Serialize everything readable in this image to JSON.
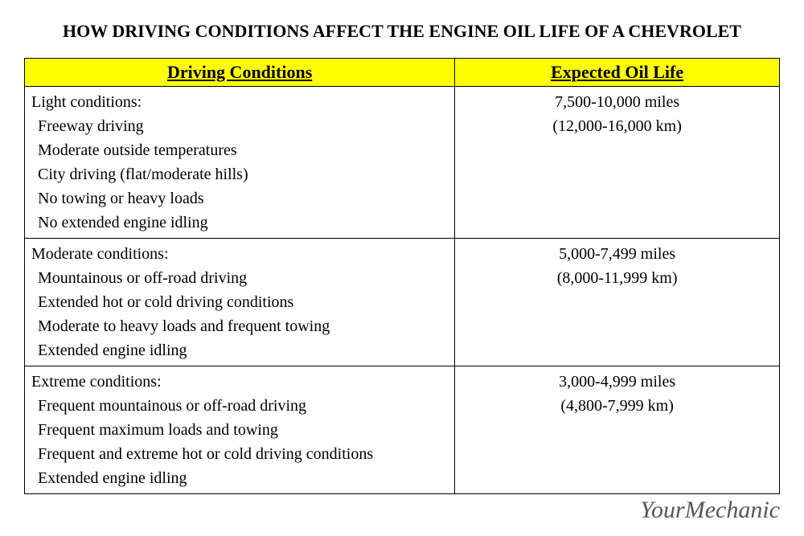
{
  "title": "HOW DRIVING CONDITIONS AFFECT THE ENGINE OIL LIFE OF A CHEVROLET",
  "table": {
    "header_bg": "#ffff00",
    "columns": [
      "Driving Conditions",
      "Expected Oil Life"
    ],
    "rows": [
      {
        "condition_label": "Light conditions:",
        "condition_items": [
          "Freeway driving",
          "Moderate outside temperatures",
          "City driving (flat/moderate hills)",
          "No towing or heavy loads",
          "No extended engine idling"
        ],
        "oil_life_miles": "7,500-10,000 miles",
        "oil_life_km": "(12,000-16,000 km)"
      },
      {
        "condition_label": "Moderate conditions:",
        "condition_items": [
          "Mountainous or off-road driving",
          "Extended hot or cold driving conditions",
          "Moderate to heavy loads and frequent towing",
          "Extended engine idling"
        ],
        "oil_life_miles": "5,000-7,499 miles",
        "oil_life_km": "(8,000-11,999 km)"
      },
      {
        "condition_label": "Extreme conditions:",
        "condition_items": [
          "Frequent mountainous or off-road driving",
          "Frequent maximum loads and towing",
          "Frequent and extreme hot or cold driving conditions",
          "Extended engine idling"
        ],
        "oil_life_miles": "3,000-4,999 miles",
        "oil_life_km": "(4,800-7,999 km)"
      }
    ]
  },
  "watermark": "YourMechanic"
}
